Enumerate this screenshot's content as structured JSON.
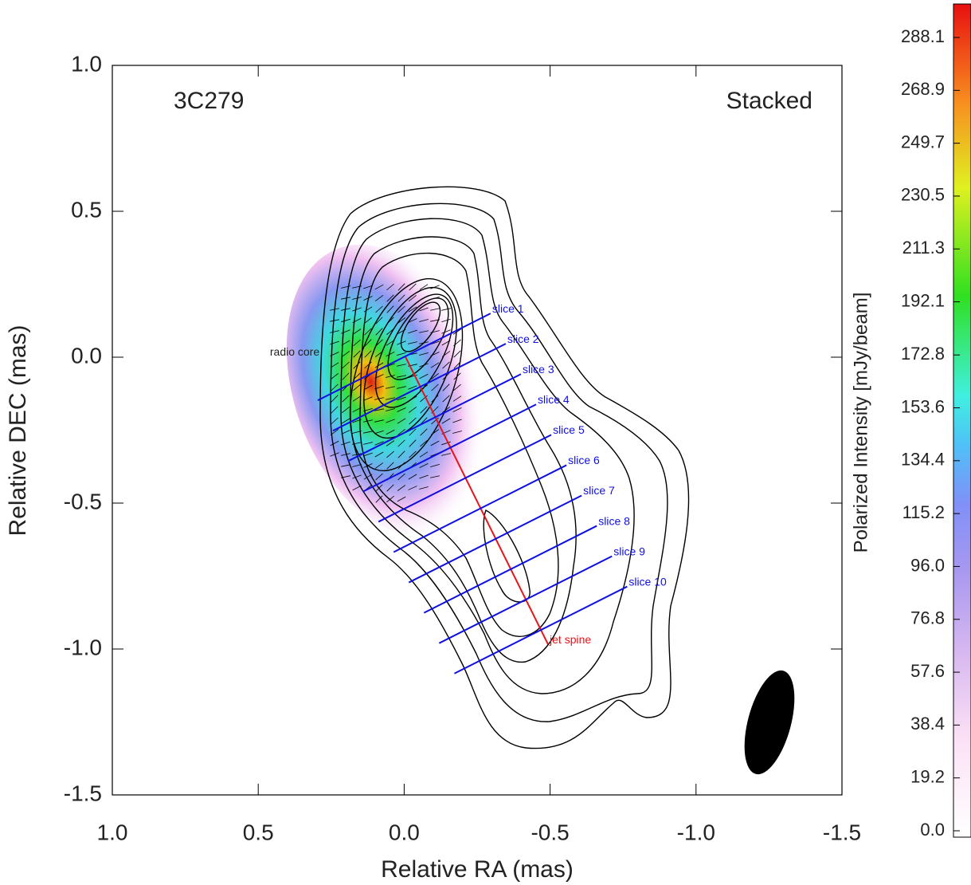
{
  "chart_data": {
    "type": "contour",
    "title": "3C279",
    "subtitle": "Stacked",
    "x_label": "Relative RA (mas)",
    "y_label": "Relative DEC (mas)",
    "xlim": [
      1.0,
      -1.5
    ],
    "ylim": [
      -1.5,
      1.0
    ],
    "xticks": [
      {
        "value": 1,
        "label": "1.0"
      },
      0.5,
      {
        "value": 0,
        "label": "0.0"
      },
      -0.5,
      {
        "value": -1,
        "label": "-1.0"
      },
      -1.5
    ],
    "yticks": [
      {
        "value": 1,
        "label": "1.0"
      },
      0.5,
      {
        "value": 0,
        "label": "0.0"
      },
      -0.5,
      {
        "value": -1,
        "label": "-1.0"
      },
      -1.5
    ],
    "grid": false,
    "annotations": [
      {
        "text": "radio core",
        "x": 0.29,
        "y": 0.016
      }
    ],
    "series": [
      {
        "name": "jet spine",
        "color": "#e8141a",
        "x": [
          -0.005,
          -0.493
        ],
        "y": [
          0.0,
          -0.984
        ]
      },
      {
        "name": "slice 1",
        "color": "#1010e0",
        "x": [
          0.296,
          -0.296
        ],
        "y": [
          -0.148,
          0.15
        ]
      },
      {
        "name": "slice 2",
        "color": "#1010e0",
        "x": [
          0.244,
          -0.348
        ],
        "y": [
          -0.252,
          0.046
        ]
      },
      {
        "name": "slice 3",
        "color": "#1010e0",
        "x": [
          0.192,
          -0.4
        ],
        "y": [
          -0.356,
          -0.058
        ]
      },
      {
        "name": "slice 4",
        "color": "#1010e0",
        "x": [
          0.14,
          -0.452
        ],
        "y": [
          -0.46,
          -0.162
        ]
      },
      {
        "name": "slice 5",
        "color": "#1010e0",
        "x": [
          0.088,
          -0.504
        ],
        "y": [
          -0.564,
          -0.266
        ]
      },
      {
        "name": "slice 6",
        "color": "#1010e0",
        "x": [
          0.036,
          -0.556
        ],
        "y": [
          -0.668,
          -0.37
        ]
      },
      {
        "name": "slice 7",
        "color": "#1010e0",
        "x": [
          -0.016,
          -0.608
        ],
        "y": [
          -0.772,
          -0.474
        ]
      },
      {
        "name": "slice 8",
        "color": "#1010e0",
        "x": [
          -0.068,
          -0.66
        ],
        "y": [
          -0.876,
          -0.578
        ]
      },
      {
        "name": "slice 9",
        "color": "#1010e0",
        "x": [
          -0.12,
          -0.712
        ],
        "y": [
          -0.98,
          -0.682
        ]
      },
      {
        "name": "slice 10",
        "color": "#1010e0",
        "x": [
          -0.172,
          -0.764
        ],
        "y": [
          -1.084,
          -0.786
        ]
      }
    ],
    "colorbar": {
      "label": "Polarized Intensity [mJy/beam]",
      "lim": [
        0,
        288.1
      ],
      "ticks": [
        {
          "value": 0,
          "label": "0.0"
        },
        19.2,
        38.4,
        57.6,
        76.8,
        {
          "value": 96,
          "label": "96.0"
        },
        115.2,
        134.4,
        153.6,
        172.8,
        192.1,
        211.3,
        230.5,
        249.7,
        268.9,
        288.1
      ]
    }
  }
}
